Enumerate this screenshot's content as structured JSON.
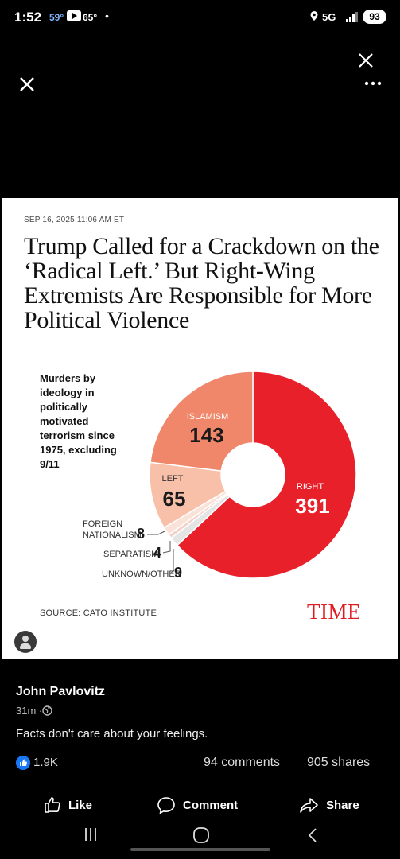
{
  "status_bar": {
    "time": "1:52",
    "temp1": "59°",
    "temp2": "65°",
    "dot": "•",
    "network": "5G",
    "battery": "93"
  },
  "article": {
    "date": "SEP 16, 2025 11:06 AM ET",
    "headline": "Trump Called for a Crackdown on the ‘Radical Left.’ But Right-Wing Extremists Are Responsible for More Political Violence",
    "chart_caption": "Murders by ideology in politically motivated terrorism since 1975, excluding 9/11",
    "source": "SOURCE: CATO INSTITUTE",
    "logo": "TIME"
  },
  "chart_data": {
    "type": "pie",
    "title": "Murders by ideology in politically motivated terrorism since 1975, excluding 9/11",
    "categories": [
      "RIGHT",
      "UNKNOWN/OTHER",
      "SEPARATISM",
      "FOREIGN NATIONALISM",
      "LEFT",
      "ISLAMISM"
    ],
    "values": [
      391,
      9,
      4,
      8,
      65,
      143
    ],
    "colors": [
      "#e8202a",
      "#e4e4e4",
      "#f3d2c8",
      "#fbe2d8",
      "#f8bfa9",
      "#f0876a"
    ],
    "labels": {
      "right_name": "RIGHT",
      "right_value": "391",
      "islamism_name": "ISLAMISM",
      "islamism_value": "143",
      "left_name": "LEFT",
      "left_value": "65",
      "foreign_name_1": "FOREIGN",
      "foreign_name_2": "NATIONALISM",
      "foreign_value": "8",
      "separatism_name": "SEPARATISM",
      "separatism_value": "4",
      "unknown_name": "UNKNOWN/OTHER",
      "unknown_value": "9"
    }
  },
  "post": {
    "author": "John Pavlovitz",
    "time": "31m ·",
    "caption": "Facts don't care about your feelings.",
    "reactions": "1.9K",
    "comments": "94 comments",
    "shares": "905 shares"
  },
  "actions": {
    "like": "Like",
    "comment": "Comment",
    "share": "Share"
  },
  "icons": [
    "close-icon",
    "more-icon",
    "globe-icon",
    "like-icon",
    "comment-icon",
    "share-icon",
    "avatar-icon"
  ]
}
